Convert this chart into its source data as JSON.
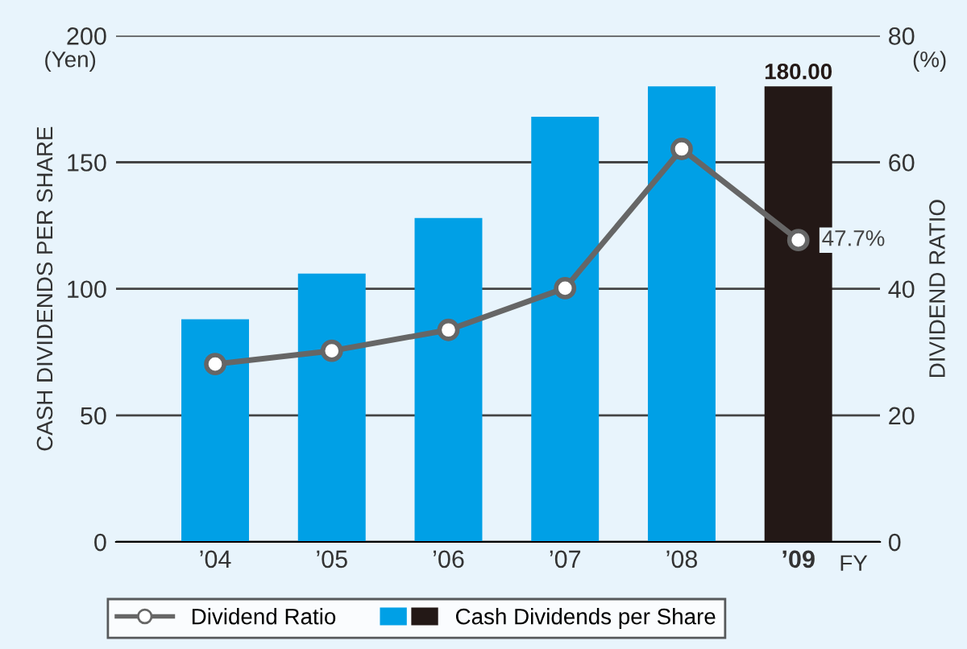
{
  "chart_data": {
    "type": "bar",
    "ylabel": "CASH DIVIDENDS PER SHARE",
    "y2label": "DIVIDEND RATIO",
    "categories": [
      "’04",
      "’05",
      "’06",
      "’07",
      "’08",
      "’09"
    ],
    "series": [
      {
        "name": "Cash Dividends per Share",
        "colors": [
          "#00a0e6",
          "#00a0e6",
          "#00a0e6",
          "#00a0e6",
          "#00a0e6",
          "#231816"
        ],
        "values": [
          88,
          106,
          128,
          168,
          180,
          180
        ],
        "value_labels": [
          null,
          null,
          null,
          null,
          null,
          "180.00"
        ]
      },
      {
        "name": "Dividend Ratio",
        "type": "line",
        "axis": "y2",
        "color": "#666666",
        "marker": "circle",
        "values": [
          28.1,
          30.2,
          33.5,
          40.1,
          62.1,
          47.7
        ],
        "value_labels": [
          null,
          null,
          null,
          null,
          null,
          "47.7%"
        ]
      }
    ],
    "ylim": [
      0,
      200
    ],
    "yticks": [
      0,
      50,
      100,
      150,
      200
    ],
    "y2lim": [
      0,
      80
    ],
    "y2ticks": [
      0,
      20,
      40,
      60,
      80
    ],
    "grid": "y",
    "legend": "bottom",
    "annotations": [
      "(Yen)",
      "(%)",
      "FY"
    ]
  }
}
